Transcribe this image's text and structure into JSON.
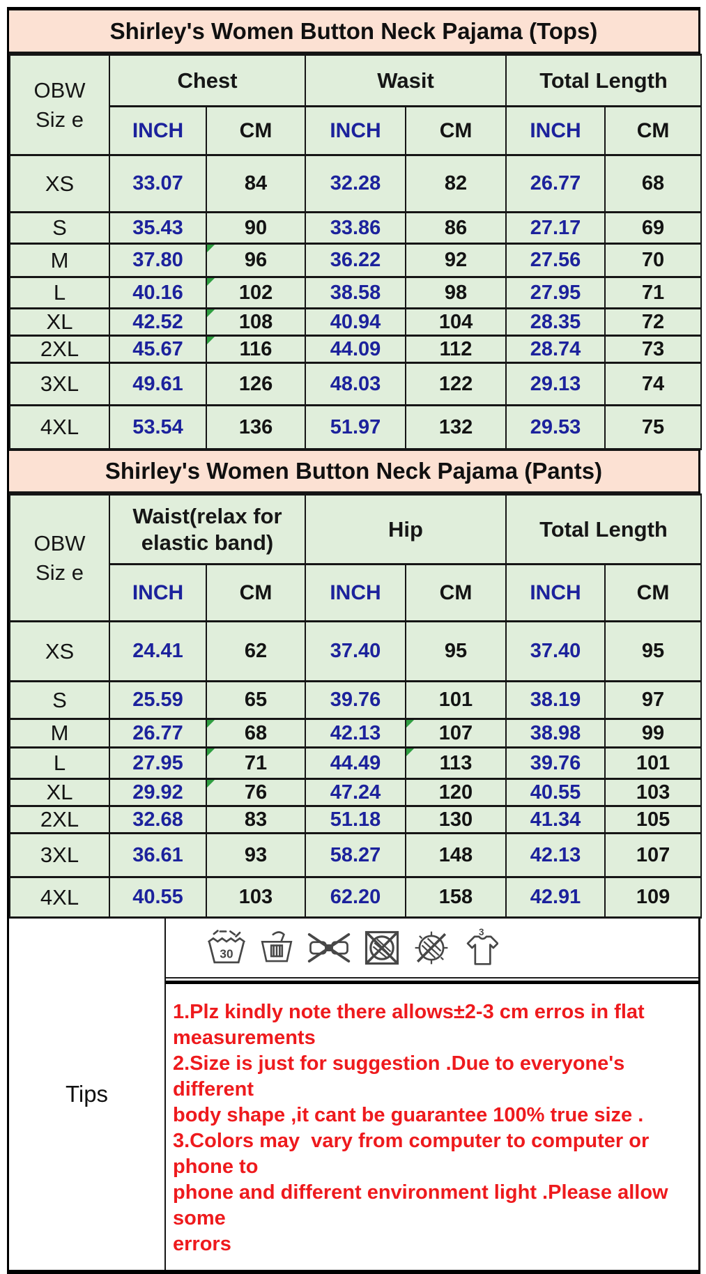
{
  "chart_data": [
    {
      "type": "table",
      "title": "Shirley's Women Button Neck Pajama (Tops)",
      "size_header_lines": [
        "OBW",
        "Siz e"
      ],
      "column_groups": [
        [
          "Chest"
        ],
        [
          "Wasit"
        ],
        [
          "Total Length"
        ]
      ],
      "unit_row": [
        "INCH",
        "CM",
        "INCH",
        "CM",
        "INCH",
        "CM"
      ],
      "sizes": [
        "XS",
        "S",
        "M",
        "L",
        "XL",
        "2XL",
        "3XL",
        "4XL"
      ],
      "values": [
        [
          33.07,
          84,
          32.28,
          82,
          26.77,
          68
        ],
        [
          35.43,
          90,
          33.86,
          86,
          27.17,
          69
        ],
        [
          37.8,
          96,
          36.22,
          92,
          27.56,
          70
        ],
        [
          40.16,
          102,
          38.58,
          98,
          27.95,
          71
        ],
        [
          42.52,
          108,
          40.94,
          104,
          28.35,
          72
        ],
        [
          45.67,
          116,
          44.09,
          112,
          28.74,
          73
        ],
        [
          49.61,
          126,
          48.03,
          122,
          29.13,
          74
        ],
        [
          53.54,
          136,
          51.97,
          132,
          29.53,
          75
        ]
      ],
      "comment_marker_cells": [
        [
          2,
          1
        ],
        [
          3,
          1
        ],
        [
          4,
          1
        ],
        [
          5,
          1
        ]
      ]
    },
    {
      "type": "table",
      "title": "Shirley's Women Button Neck Pajama (Pants)",
      "size_header_lines": [
        "OBW",
        "Siz e"
      ],
      "column_groups": [
        [
          "Waist(relax for",
          "elastic band)"
        ],
        [
          "Hip"
        ],
        [
          "Total Length"
        ]
      ],
      "unit_row": [
        "INCH",
        "CM",
        "INCH",
        "CM",
        "INCH",
        "CM"
      ],
      "sizes": [
        "XS",
        "S",
        "M",
        "L",
        "XL",
        "2XL",
        "3XL",
        "4XL"
      ],
      "values": [
        [
          24.41,
          62,
          37.4,
          95,
          37.4,
          95
        ],
        [
          25.59,
          65,
          39.76,
          101,
          38.19,
          97
        ],
        [
          26.77,
          68,
          42.13,
          107,
          38.98,
          99
        ],
        [
          27.95,
          71,
          44.49,
          113,
          39.76,
          101
        ],
        [
          29.92,
          76,
          47.24,
          120,
          40.55,
          103
        ],
        [
          32.68,
          83,
          51.18,
          130,
          41.34,
          105
        ],
        [
          36.61,
          93,
          58.27,
          148,
          42.13,
          107
        ],
        [
          40.55,
          103,
          62.2,
          158,
          42.91,
          109
        ]
      ],
      "comment_marker_cells": [
        [
          2,
          1
        ],
        [
          2,
          3
        ],
        [
          3,
          1
        ],
        [
          3,
          3
        ],
        [
          4,
          1
        ]
      ]
    }
  ],
  "tips": {
    "label": "Tips",
    "care_icons": [
      "hand-wash-30-icon",
      "hand-wash-basin-icon",
      "do-not-wring-icon",
      "do-not-tumble-dry-icon",
      "do-not-dry-clean-icon",
      "garment-shirt-icon"
    ],
    "wash_temperature": "30",
    "shirt_number": "3",
    "note_lines": [
      "1.Plz kindly note there allows±2-3 cm erros in flat",
      "measurements",
      "2.Size is just for suggestion .Due to everyone's different",
      "body shape ,it cant be guarantee 100% true size .",
      "3.Colors may  vary from computer to computer or phone to",
      "phone and different environment light .Please allow some",
      "errors"
    ]
  },
  "colors": {
    "title_bg": "#fce1d3",
    "cell_bg": "#e0eedb",
    "inch_text": "#1c229c",
    "cm_text": "#131313",
    "note_text": "#ee1a1d",
    "comment_marker": "#2f9e41"
  }
}
